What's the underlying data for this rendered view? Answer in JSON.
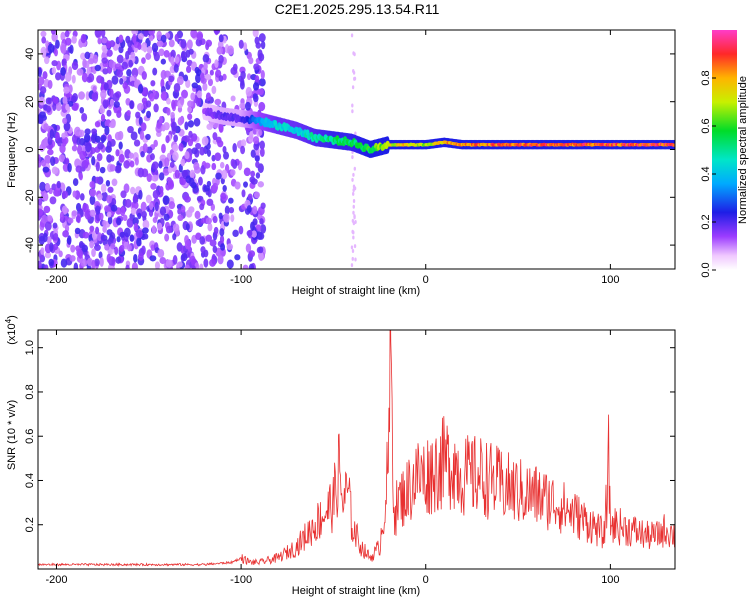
{
  "title": "C2E1.2025.295.13.54.R11",
  "top_xlabel": "Height of straight line (km)",
  "top_ylabel": "Frequency (Hz)",
  "colorbar_label": "Normalized spectral amplitude",
  "bottom_xlabel": "Height of straight line (km)",
  "bottom_ylabel": "SNR (10 * v/v)",
  "bottom_exponent_label": "(x10",
  "bottom_exponent_power": "4",
  "bottom_exponent_close": ")",
  "chart_data": [
    {
      "type": "heatmap",
      "title": "C2E1.2025.295.13.54.R11",
      "xlabel": "Height of straight line (km)",
      "ylabel": "Frequency (Hz)",
      "xlim": [
        -210,
        135
      ],
      "ylim": [
        -50,
        50
      ],
      "x_ticks": [
        -200,
        -100,
        0,
        100
      ],
      "x_tick_labels": [
        "-200",
        "-100",
        "0",
        "100"
      ],
      "y_ticks": [
        -40,
        -20,
        0,
        20,
        40
      ],
      "y_tick_labels": [
        "-40",
        "-20",
        "0",
        "20",
        "40"
      ],
      "colorbar": {
        "label": "Normalized spectral amplitude",
        "range": [
          0,
          1
        ],
        "ticks": [
          0.0,
          0.2,
          0.4,
          0.6,
          0.8
        ],
        "tick_labels": [
          "0.0",
          "0.2",
          "0.4",
          "0.6",
          "0.8"
        ]
      },
      "ridge": {
        "x": [
          -120,
          -110,
          -100,
          -90,
          -80,
          -70,
          -60,
          -50,
          -40,
          -30,
          -20,
          -10,
          0,
          10,
          20,
          40,
          60,
          80,
          100,
          120,
          135
        ],
        "freq": [
          16,
          14,
          13,
          12,
          10,
          8,
          5,
          4,
          3,
          0,
          2,
          2,
          2,
          3,
          2,
          2,
          2,
          2,
          2,
          2,
          2
        ],
        "amplitude": [
          0.15,
          0.2,
          0.2,
          0.35,
          0.45,
          0.45,
          0.5,
          0.55,
          0.55,
          0.6,
          0.75,
          0.8,
          0.7,
          0.85,
          0.85,
          0.9,
          0.92,
          0.92,
          0.9,
          0.95,
          0.95
        ]
      }
    },
    {
      "type": "line",
      "xlabel": "Height of straight line (km)",
      "ylabel": "SNR (10 * v/v)",
      "y_multiplier": "x10^4",
      "xlim": [
        -210,
        135
      ],
      "ylim": [
        0,
        1.08
      ],
      "x_ticks": [
        -200,
        -100,
        0,
        100
      ],
      "x_tick_labels": [
        "-200",
        "-100",
        "0",
        "100"
      ],
      "y_ticks": [
        0.2,
        0.4,
        0.6,
        0.8,
        1.0
      ],
      "y_tick_labels": [
        "0.2",
        "0.4",
        "0.6",
        "0.8",
        "1.0"
      ],
      "series": [
        {
          "color": "#e83030",
          "x": [
            -210,
            -200,
            -180,
            -160,
            -140,
            -120,
            -105,
            -100,
            -95,
            -90,
            -80,
            -70,
            -65,
            -60,
            -55,
            -50,
            -47,
            -45,
            -42,
            -40,
            -35,
            -30,
            -25,
            -22,
            -20,
            -19,
            -18,
            -17,
            -15,
            -10,
            -5,
            0,
            5,
            10,
            15,
            20,
            30,
            40,
            50,
            60,
            70,
            80,
            90,
            97,
            99,
            100,
            102,
            110,
            120,
            125,
            130,
            135
          ],
          "y": [
            0.02,
            0.02,
            0.02,
            0.02,
            0.02,
            0.02,
            0.03,
            0.05,
            0.03,
            0.03,
            0.05,
            0.1,
            0.15,
            0.2,
            0.25,
            0.3,
            0.45,
            0.3,
            0.35,
            0.2,
            0.1,
            0.05,
            0.1,
            0.3,
            0.5,
            1.05,
            0.6,
            0.25,
            0.3,
            0.35,
            0.42,
            0.42,
            0.45,
            0.48,
            0.48,
            0.42,
            0.42,
            0.38,
            0.35,
            0.33,
            0.3,
            0.25,
            0.2,
            0.15,
            0.5,
            0.2,
            0.2,
            0.18,
            0.15,
            0.15,
            0.18,
            0.15
          ]
        }
      ]
    }
  ]
}
